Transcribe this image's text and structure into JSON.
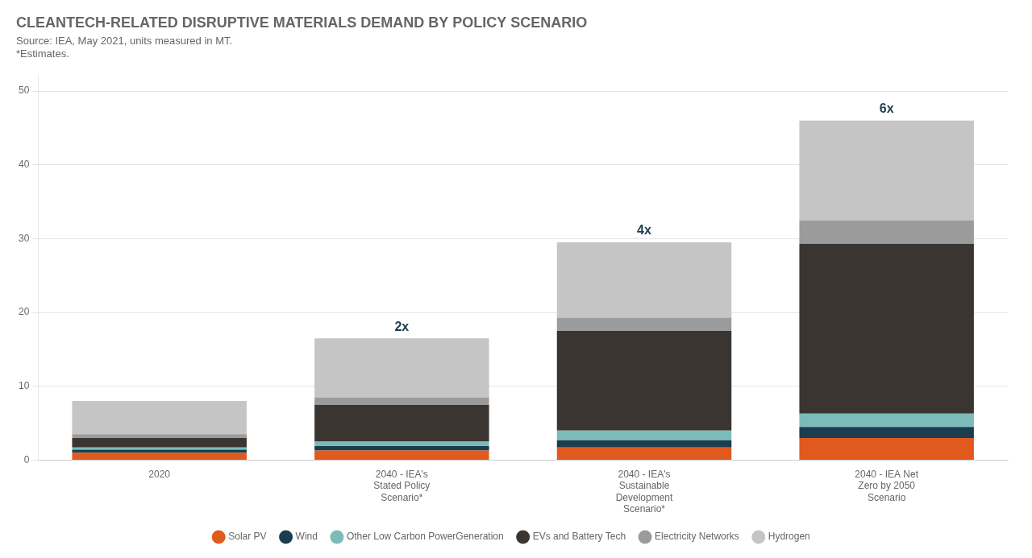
{
  "chart_data": {
    "type": "bar",
    "title": "CLEANTECH-RELATED DISRUPTIVE MATERIALS DEMAND BY POLICY SCENARIO",
    "subtitle": [
      "Source: IEA, May 2021, units measured in MT.",
      "*Estimates."
    ],
    "categories": [
      "2020",
      "2040 - IEA's\nStated Policy\nScenario*",
      "2040 - IEA's\nSustainable\nDevelopment\nScenario*",
      "2040 - IEA Net\nZero by 2050\nScenario"
    ],
    "series": [
      {
        "name": "Solar PV",
        "color": "#E05A1E",
        "values": [
          1.0,
          1.3,
          1.7,
          3.0
        ]
      },
      {
        "name": "Wind",
        "color": "#1C3D4F",
        "values": [
          0.4,
          0.6,
          1.0,
          1.5
        ]
      },
      {
        "name": "Other Low Carbon PowerGeneration",
        "color": "#7BBCBA",
        "values": [
          0.3,
          0.6,
          1.3,
          1.8
        ]
      },
      {
        "name": "EVs and Battery Tech",
        "color": "#3A3530",
        "values": [
          1.3,
          5.0,
          13.5,
          23.0
        ]
      },
      {
        "name": "Electricity Networks",
        "color": "#9B9B9B",
        "values": [
          0.5,
          1.0,
          1.8,
          3.2
        ]
      },
      {
        "name": "Hydrogen",
        "color": "#C5C5C5",
        "values": [
          4.5,
          8.0,
          10.2,
          13.5
        ]
      }
    ],
    "annotations": [
      {
        "category": "2040 - IEA's\nStated Policy\nScenario*",
        "text": "2x"
      },
      {
        "category": "2040 - IEA's\nSustainable\nDevelopment\nScenario*",
        "text": "4x"
      },
      {
        "category": "2040 - IEA Net\nZero by 2050\nScenario",
        "text": "6x"
      }
    ],
    "ylim": [
      0,
      52
    ],
    "yticks": [
      0,
      10,
      20,
      30,
      40,
      50
    ],
    "stacked": true,
    "grid": true,
    "legend": "bottom"
  }
}
